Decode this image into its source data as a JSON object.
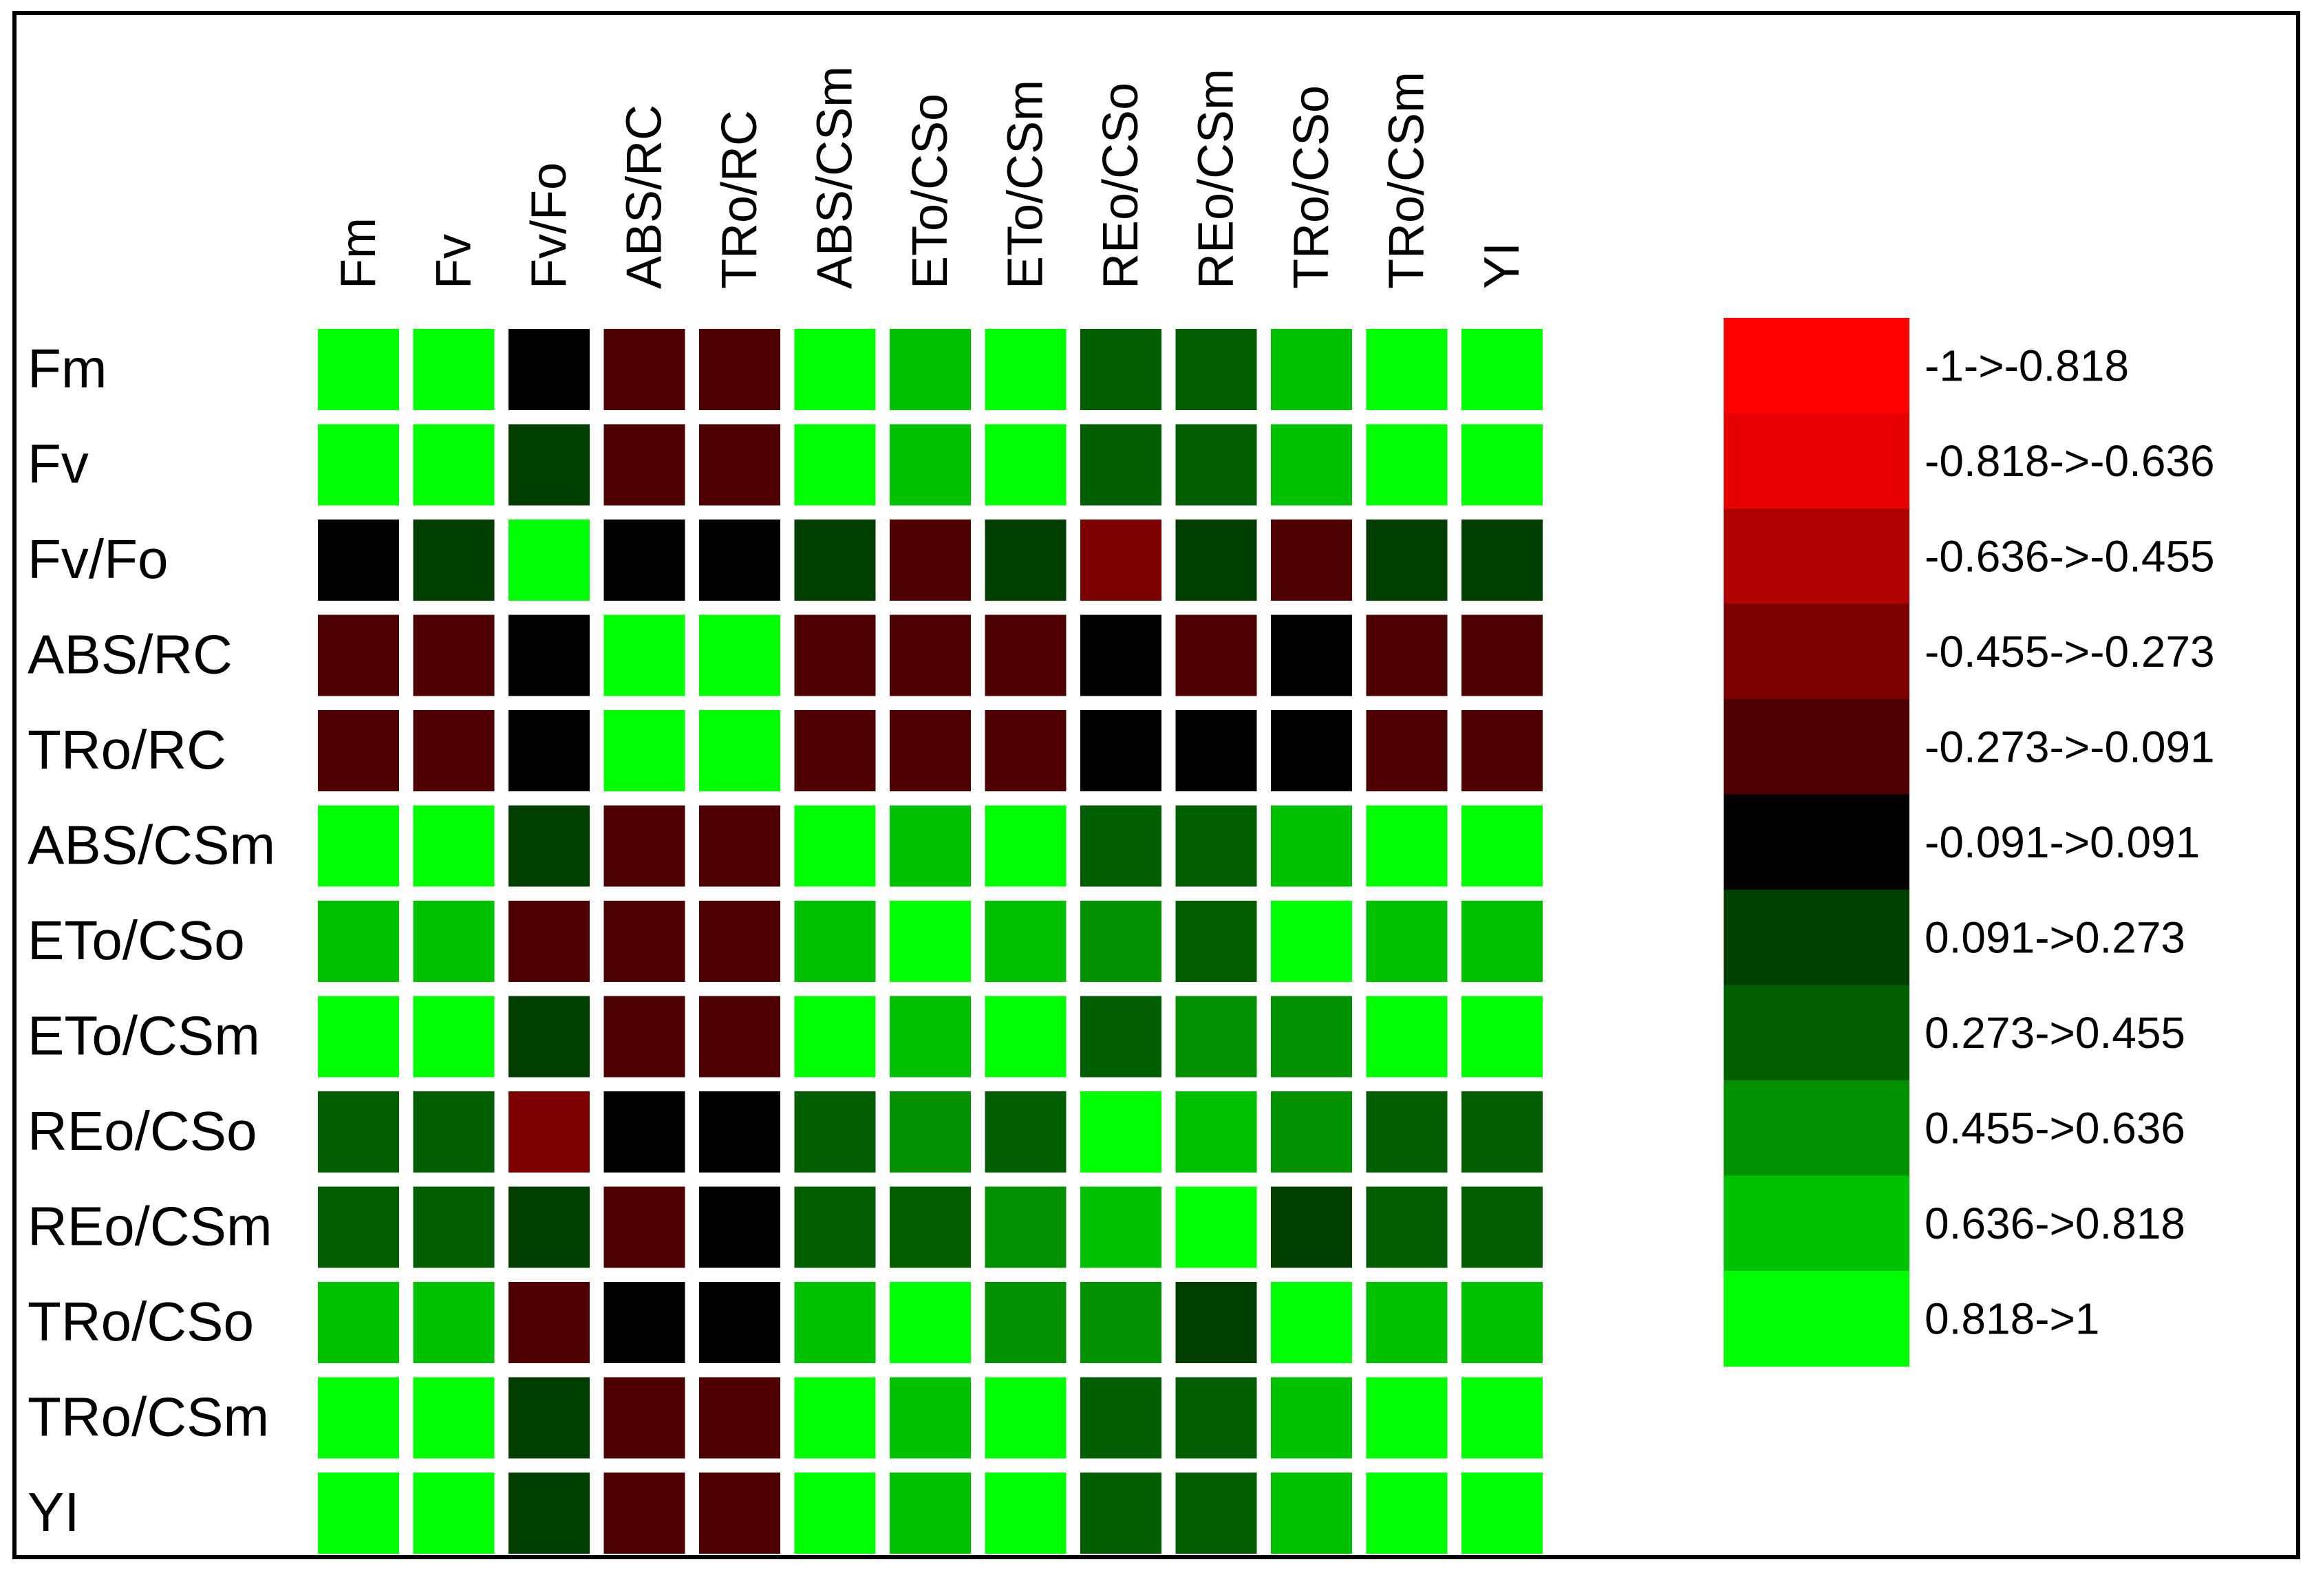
{
  "chart_data": {
    "type": "heatmap",
    "rows": [
      "Fm",
      "Fv",
      "Fv/Fo",
      "ABS/RC",
      "TRo/RC",
      "ABS/CSm",
      "ETo/CSo",
      "ETo/CSm",
      "REo/CSo",
      "REo/CSm",
      "TRo/CSo",
      "TRo/CSm",
      "YI"
    ],
    "columns": [
      "Fm",
      "Fv",
      "Fv/Fo",
      "ABS/RC",
      "TRo/RC",
      "ABS/CSm",
      "ETo/CSo",
      "ETo/CSm",
      "REo/CSo",
      "REo/CSm",
      "TRo/CSo",
      "TRo/CSm",
      "YI"
    ],
    "values": [
      [
        0.91,
        0.91,
        0.0,
        -0.18,
        -0.18,
        0.91,
        0.73,
        0.91,
        0.36,
        0.36,
        0.73,
        0.91,
        0.91
      ],
      [
        0.91,
        0.91,
        0.18,
        -0.18,
        -0.18,
        0.91,
        0.73,
        0.91,
        0.36,
        0.36,
        0.73,
        0.91,
        0.91
      ],
      [
        0.0,
        0.18,
        0.91,
        0.0,
        0.0,
        0.18,
        -0.18,
        0.18,
        -0.36,
        0.18,
        -0.18,
        0.18,
        0.18
      ],
      [
        -0.18,
        -0.18,
        0.0,
        0.91,
        0.91,
        -0.18,
        -0.18,
        -0.18,
        0.0,
        -0.18,
        0.0,
        -0.18,
        -0.18
      ],
      [
        -0.18,
        -0.18,
        0.0,
        0.91,
        0.91,
        -0.18,
        -0.18,
        -0.18,
        0.0,
        0.0,
        0.0,
        -0.18,
        -0.18
      ],
      [
        0.91,
        0.91,
        0.18,
        -0.18,
        -0.18,
        0.91,
        0.73,
        0.91,
        0.36,
        0.36,
        0.73,
        0.91,
        0.91
      ],
      [
        0.73,
        0.73,
        -0.18,
        -0.18,
        -0.18,
        0.73,
        0.91,
        0.73,
        0.55,
        0.36,
        0.91,
        0.73,
        0.73
      ],
      [
        0.91,
        0.91,
        0.18,
        -0.18,
        -0.18,
        0.91,
        0.73,
        0.91,
        0.36,
        0.55,
        0.55,
        0.91,
        0.91
      ],
      [
        0.36,
        0.36,
        -0.36,
        0.0,
        0.0,
        0.36,
        0.55,
        0.36,
        0.91,
        0.73,
        0.55,
        0.36,
        0.36
      ],
      [
        0.36,
        0.36,
        0.18,
        -0.18,
        0.0,
        0.36,
        0.36,
        0.55,
        0.73,
        0.91,
        0.18,
        0.36,
        0.36
      ],
      [
        0.73,
        0.73,
        -0.18,
        0.0,
        0.0,
        0.73,
        0.91,
        0.55,
        0.55,
        0.18,
        0.91,
        0.73,
        0.73
      ],
      [
        0.91,
        0.91,
        0.18,
        -0.18,
        -0.18,
        0.91,
        0.73,
        0.91,
        0.36,
        0.36,
        0.73,
        0.91,
        0.91
      ],
      [
        0.91,
        0.91,
        0.18,
        -0.18,
        -0.18,
        0.91,
        0.73,
        0.91,
        0.36,
        0.36,
        0.73,
        0.91,
        0.91
      ]
    ],
    "value_range": [
      -1,
      1
    ],
    "legend": {
      "placement": "right",
      "bins": [
        {
          "label": "-1->-0.818",
          "color": "#ff0000"
        },
        {
          "label": "-0.818->-0.636",
          "color": "#e60000"
        },
        {
          "label": "-0.636->-0.455",
          "color": "#b10000"
        },
        {
          "label": "-0.455->-0.273",
          "color": "#7d0000"
        },
        {
          "label": "-0.273->-0.091",
          "color": "#4e0000"
        },
        {
          "label": "-0.091->0.091",
          "color": "#000000"
        },
        {
          "label": "0.091->0.273",
          "color": "#003e00"
        },
        {
          "label": "0.273->0.455",
          "color": "#005e00"
        },
        {
          "label": "0.455->0.636",
          "color": "#009000"
        },
        {
          "label": "0.636->0.818",
          "color": "#00c100"
        },
        {
          "label": "0.818->1",
          "color": "#00ff00"
        }
      ]
    },
    "grid": false
  }
}
